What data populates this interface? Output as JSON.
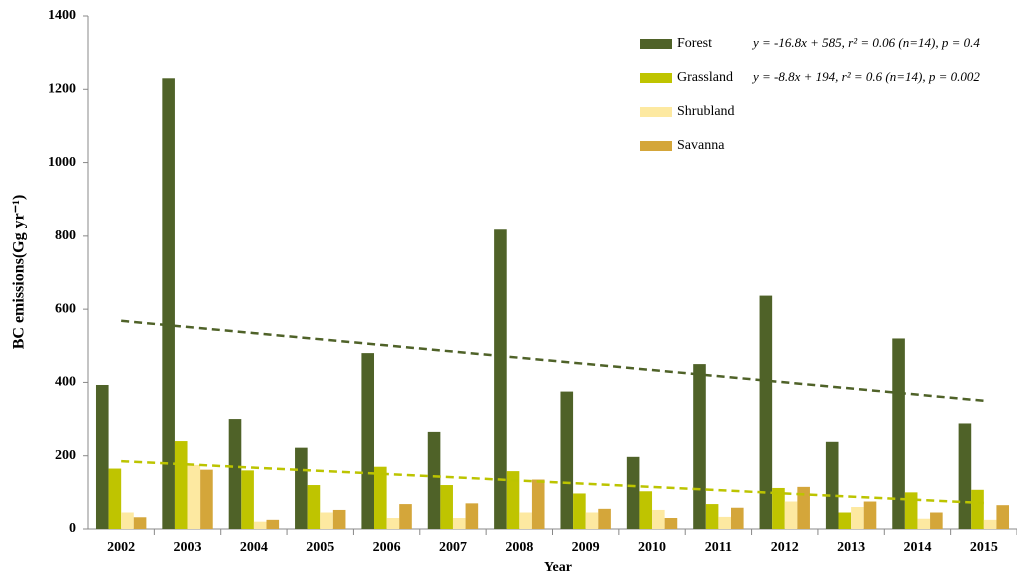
{
  "chart_data": {
    "type": "bar",
    "x_label": "Year",
    "y_label": "BC emissions(Gg yr⁻¹)",
    "categories": [
      "2002",
      "2003",
      "2004",
      "2005",
      "2006",
      "2007",
      "2008",
      "2009",
      "2010",
      "2011",
      "2012",
      "2013",
      "2014",
      "2015"
    ],
    "series": [
      {
        "name": "Forest",
        "color": "#4f6228",
        "values": [
          393,
          1230,
          300,
          222,
          480,
          265,
          818,
          375,
          197,
          450,
          637,
          238,
          520,
          288
        ]
      },
      {
        "name": "Grassland",
        "color": "#bfc400",
        "values": [
          165,
          240,
          160,
          120,
          170,
          120,
          158,
          97,
          103,
          68,
          112,
          45,
          100,
          107
        ]
      },
      {
        "name": "Shrubland",
        "color": "#fde9a1",
        "values": [
          45,
          175,
          20,
          45,
          30,
          30,
          45,
          45,
          52,
          33,
          75,
          60,
          28,
          25
        ]
      },
      {
        "name": "Savanna",
        "color": "#d4a63a",
        "values": [
          32,
          162,
          25,
          52,
          68,
          70,
          135,
          55,
          30,
          58,
          115,
          75,
          45,
          65
        ]
      }
    ],
    "trendlines": [
      {
        "series": "Forest",
        "color": "#4f6228",
        "slope": -16.8,
        "intercept": 585,
        "label": "y = -16.8x + 585, r² = 0.06 (n=14), p = 0.4"
      },
      {
        "series": "Grassland",
        "color": "#bcc400",
        "slope": -8.8,
        "intercept": 194,
        "label": "y = -8.8x + 194, r² = 0.6 (n=14), p = 0.002"
      }
    ],
    "ylim": [
      0,
      1400
    ],
    "yticks": [
      0,
      200,
      400,
      600,
      800,
      1000,
      1200,
      1400
    ],
    "legend": "upper right"
  }
}
